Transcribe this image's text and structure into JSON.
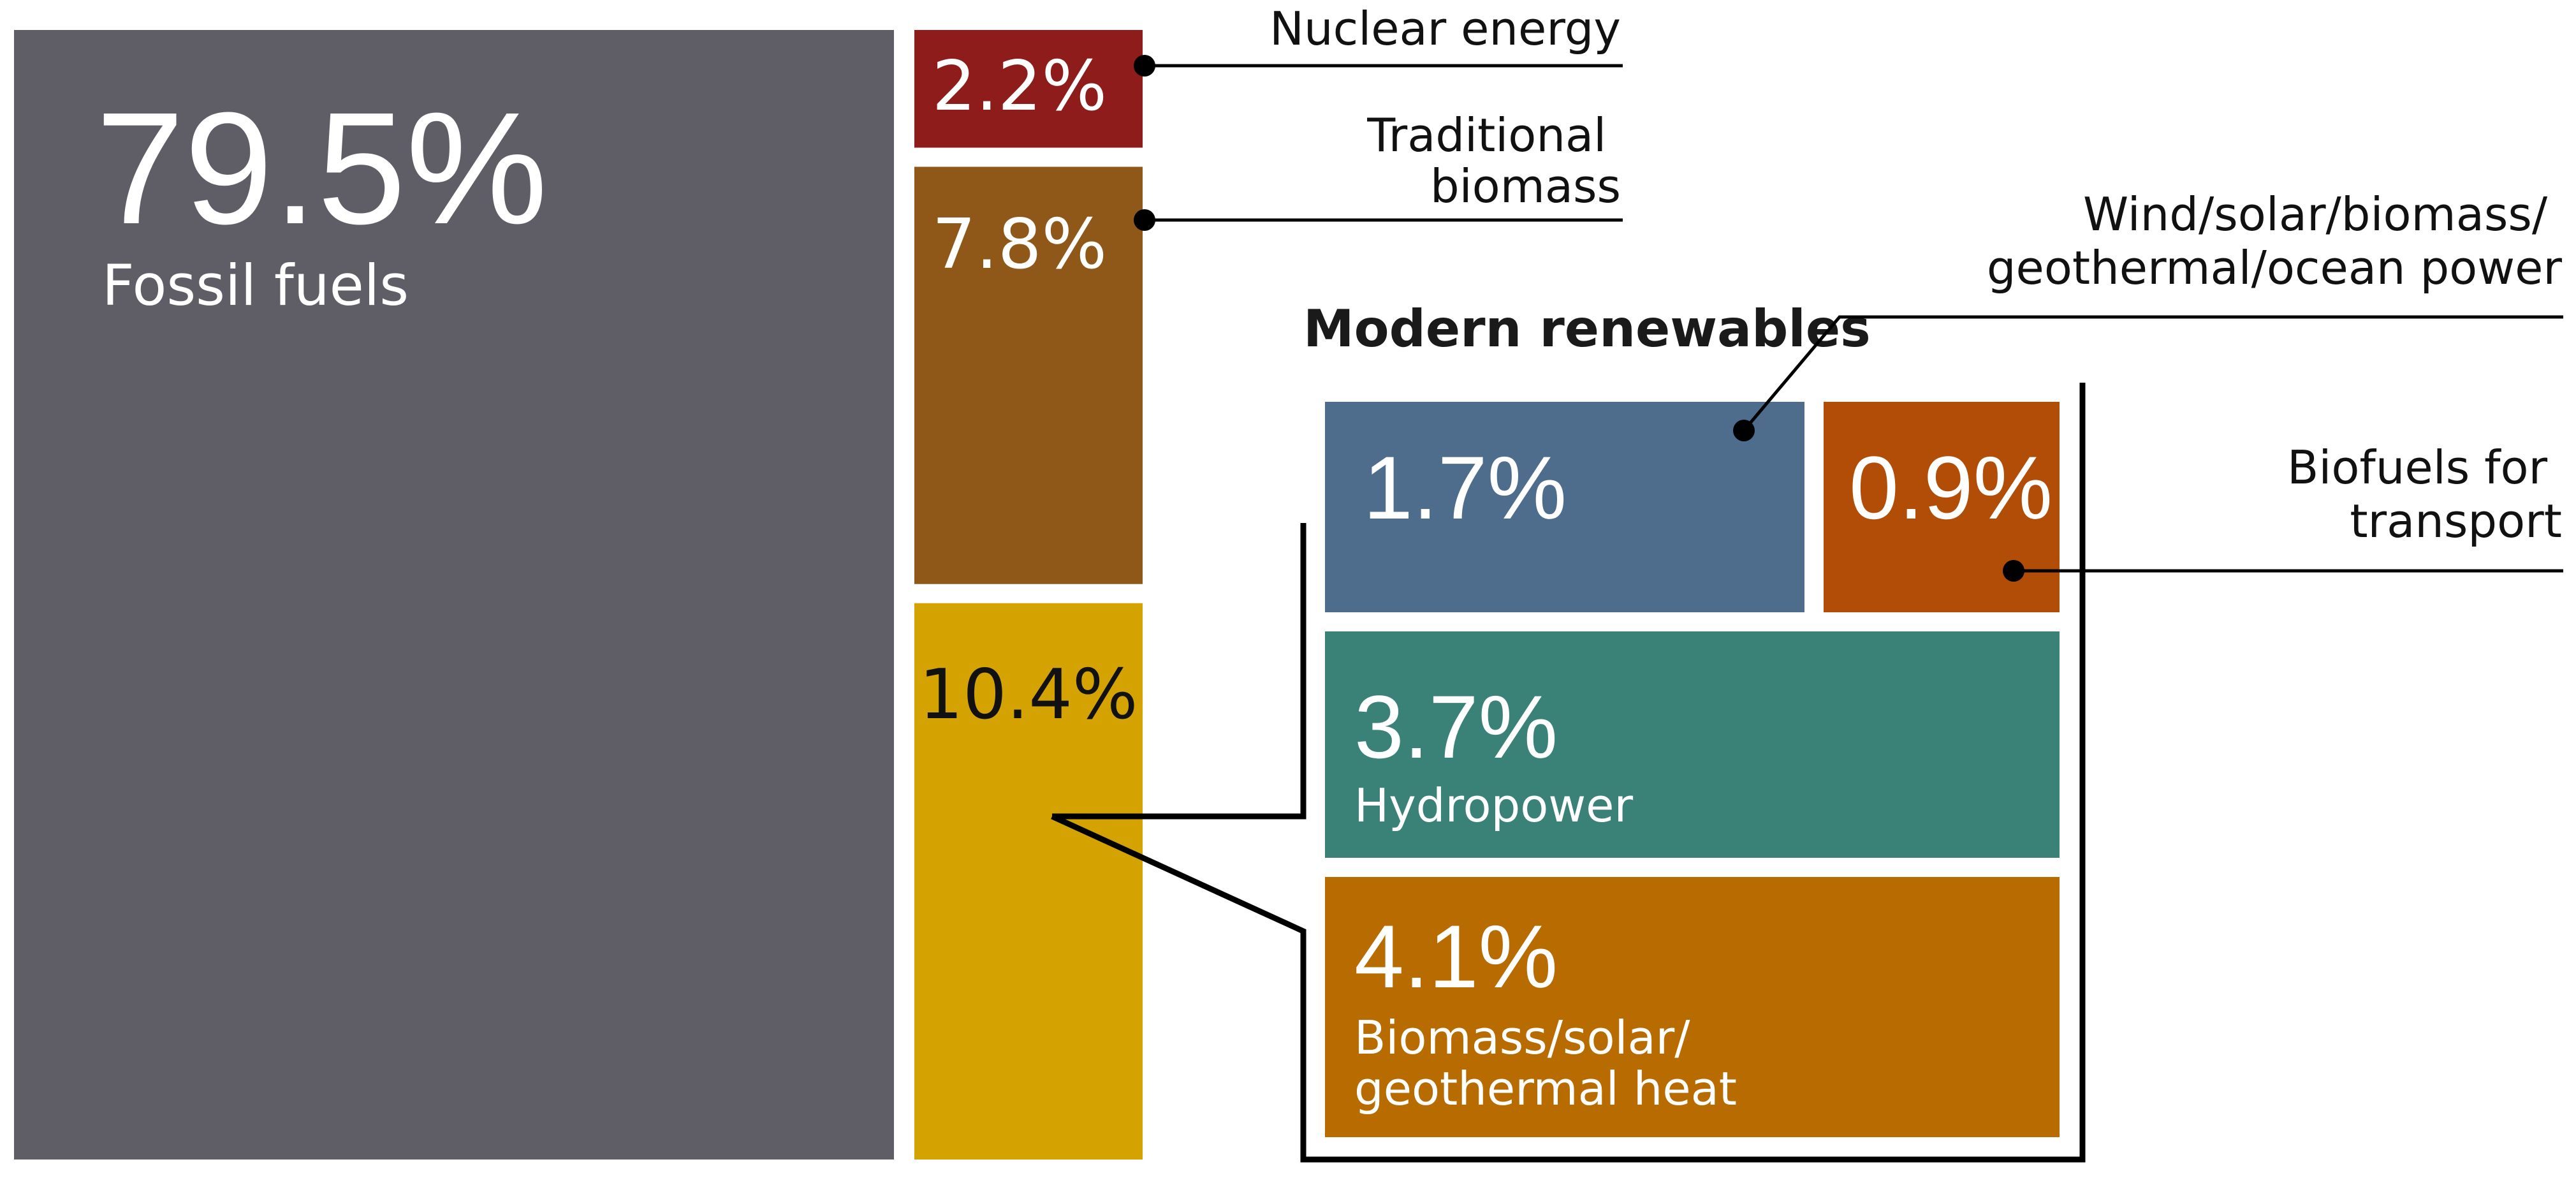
{
  "chart_data": {
    "type": "treemap",
    "unit": "%",
    "title": "",
    "segments": [
      {
        "key": "fossil",
        "label": "Fossil fuels",
        "value": 79.5,
        "value_text": "79.5%",
        "color": "#5f5e67",
        "text_color": "#ffffff"
      },
      {
        "key": "nuclear",
        "label": "Nuclear energy",
        "value": 2.2,
        "value_text": "2.2%",
        "color": "#8e1c1b",
        "text_color": "#ffffff"
      },
      {
        "key": "traditional",
        "label": "Traditional biomass",
        "value": 7.8,
        "value_text": "7.8%",
        "color": "#8f5718",
        "text_color": "#ffffff"
      },
      {
        "key": "modern",
        "label": "Modern renewables",
        "value": 10.4,
        "value_text": "10.4%",
        "color": "#d4a201",
        "text_color": "#111111"
      }
    ],
    "modern_breakdown": {
      "title": "Modern renewables",
      "items": [
        {
          "key": "wind",
          "label": "Wind/solar/biomass/ geothermal/ocean power",
          "value": 1.7,
          "value_text": "1.7%",
          "color": "#4e6d8c",
          "text_color": "#ffffff"
        },
        {
          "key": "biofuels",
          "label": "Biofuels for transport",
          "value": 0.9,
          "value_text": "0.9%",
          "color": "#b14d07",
          "text_color": "#ffffff"
        },
        {
          "key": "hydro",
          "label": "Hydropower",
          "value": 3.7,
          "value_text": "3.7%",
          "color": "#3a8278",
          "text_color": "#ffffff"
        },
        {
          "key": "heat",
          "label": "Biomass/solar/ geothermal heat",
          "value": 4.1,
          "value_text": "4.1%",
          "color": "#b86c00",
          "text_color": "#ffffff"
        }
      ]
    }
  }
}
